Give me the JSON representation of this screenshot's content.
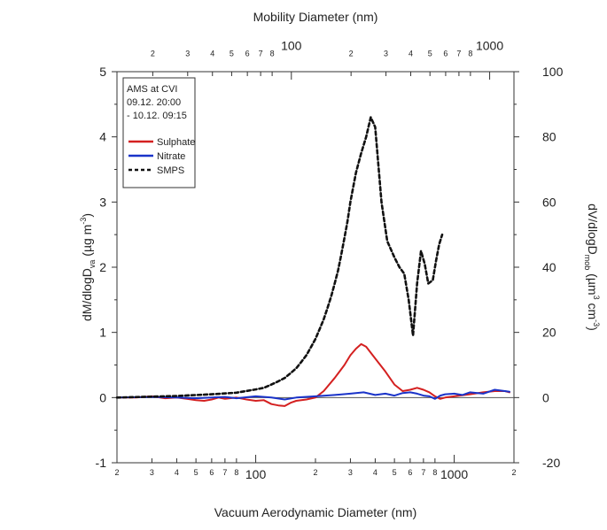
{
  "chart_data": {
    "type": "line",
    "title": "",
    "xlabel": "Vacuum Aerodynamic Diameter (nm)",
    "x_scale": "log",
    "xlim": [
      20,
      2000
    ],
    "x2label": "Mobility Diameter (nm)",
    "x2_scale": "log",
    "x2lim": [
      13.2,
      1326
    ],
    "ylabel": "dM/dlogD_va (µg m^-3)",
    "ylabel_parts": {
      "main": "dM/dlogD",
      "sub": "va",
      "unit_open": " (µg m",
      "unit_sup": "-3",
      "unit_close": ")"
    },
    "ylim": [
      -1,
      5
    ],
    "y_ticks": [
      -1,
      0,
      1,
      2,
      3,
      4,
      5
    ],
    "y2label": "dV/dlogD_mob (µm^3 cm^-3)",
    "y2label_parts": {
      "main": "dV/dlogD",
      "sub": "mob",
      "unit_open": " (µm",
      "unit_sup": "3",
      "unit_mid": " cm",
      "unit_sup2": "-3",
      "unit_close": ")"
    },
    "y2lim": [
      -20,
      100
    ],
    "y2_ticks": [
      -20,
      0,
      20,
      40,
      60,
      80,
      100
    ],
    "x_tick_labels": [
      {
        "v": 20,
        "t": "2"
      },
      {
        "v": 30,
        "t": "3"
      },
      {
        "v": 40,
        "t": "4"
      },
      {
        "v": 50,
        "t": "5"
      },
      {
        "v": 60,
        "t": "6"
      },
      {
        "v": 70,
        "t": "7"
      },
      {
        "v": 80,
        "t": "8"
      },
      {
        "v": 100,
        "t": "100"
      },
      {
        "v": 200,
        "t": "2"
      },
      {
        "v": 300,
        "t": "3"
      },
      {
        "v": 400,
        "t": "4"
      },
      {
        "v": 500,
        "t": "5"
      },
      {
        "v": 600,
        "t": "6"
      },
      {
        "v": 700,
        "t": "7"
      },
      {
        "v": 800,
        "t": "8"
      },
      {
        "v": 1000,
        "t": "1000"
      },
      {
        "v": 2000,
        "t": "2"
      }
    ],
    "x2_tick_labels": [
      {
        "v": 20,
        "t": "2"
      },
      {
        "v": 30,
        "t": "3"
      },
      {
        "v": 40,
        "t": "4"
      },
      {
        "v": 50,
        "t": "5"
      },
      {
        "v": 60,
        "t": "6"
      },
      {
        "v": 70,
        "t": "7"
      },
      {
        "v": 80,
        "t": "8"
      },
      {
        "v": 100,
        "t": "100"
      },
      {
        "v": 200,
        "t": "2"
      },
      {
        "v": 300,
        "t": "3"
      },
      {
        "v": 400,
        "t": "4"
      },
      {
        "v": 500,
        "t": "5"
      },
      {
        "v": 600,
        "t": "6"
      },
      {
        "v": 700,
        "t": "7"
      },
      {
        "v": 800,
        "t": "8"
      },
      {
        "v": 1000,
        "t": "1000"
      }
    ],
    "grid": false,
    "zero_line": true,
    "legend_position": "top-left",
    "annotation_lines": [
      "AMS at CVI",
      "09.12. 20:00",
      "- 10.12. 09:15"
    ],
    "series": [
      {
        "name": "Sulphate",
        "color": "#d42020",
        "dash": "solid",
        "axis": "left",
        "x": [
          20,
          25,
          30,
          35,
          40,
          45,
          50,
          55,
          60,
          65,
          70,
          80,
          90,
          100,
          110,
          120,
          130,
          140,
          150,
          160,
          180,
          200,
          220,
          250,
          280,
          300,
          320,
          340,
          360,
          400,
          450,
          500,
          550,
          600,
          650,
          700,
          750,
          800,
          850,
          900,
          1000,
          1200,
          1400,
          1600,
          1800,
          1900
        ],
        "y": [
          0,
          0,
          0.02,
          -0.01,
          0,
          -0.02,
          -0.04,
          -0.05,
          -0.03,
          0,
          -0.02,
          0,
          -0.03,
          -0.05,
          -0.04,
          -0.1,
          -0.12,
          -0.13,
          -0.08,
          -0.05,
          -0.03,
          0,
          0.1,
          0.3,
          0.5,
          0.65,
          0.75,
          0.82,
          0.78,
          0.6,
          0.4,
          0.2,
          0.1,
          0.12,
          0.15,
          0.12,
          0.08,
          0.02,
          -0.02,
          0.0,
          0.02,
          0.05,
          0.08,
          0.1,
          0.1,
          0.08
        ]
      },
      {
        "name": "Nitrate",
        "color": "#1a33c9",
        "dash": "solid",
        "axis": "left",
        "x": [
          20,
          30,
          40,
          50,
          60,
          70,
          80,
          100,
          120,
          140,
          160,
          200,
          250,
          300,
          350,
          400,
          450,
          500,
          550,
          600,
          650,
          700,
          750,
          800,
          850,
          900,
          1000,
          1100,
          1200,
          1400,
          1600,
          1800,
          1900
        ],
        "y": [
          0,
          0.01,
          0,
          -0.01,
          0,
          0.01,
          -0.01,
          0.02,
          0,
          -0.03,
          0,
          0.02,
          0.04,
          0.06,
          0.08,
          0.04,
          0.06,
          0.03,
          0.07,
          0.08,
          0.06,
          0.03,
          0.02,
          -0.02,
          0.03,
          0.05,
          0.06,
          0.04,
          0.08,
          0.06,
          0.12,
          0.1,
          0.09
        ]
      },
      {
        "name": "SMPS",
        "color": "#111111",
        "dash": "dotted",
        "axis": "right",
        "x": [
          20,
          40,
          60,
          80,
          100,
          110,
          120,
          130,
          140,
          150,
          160,
          170,
          180,
          190,
          200,
          210,
          220,
          230,
          240,
          250,
          260,
          270,
          280,
          290,
          300,
          320,
          340,
          360,
          380,
          400,
          430,
          460,
          500,
          530,
          560,
          590,
          620,
          650,
          680,
          710,
          740,
          780,
          810,
          840,
          870
        ],
        "y": [
          0,
          0.5,
          1.0,
          1.5,
          2.5,
          3.0,
          4.0,
          5.0,
          6.0,
          7.5,
          9.0,
          11.0,
          13.0,
          15.5,
          18.0,
          21.0,
          24.0,
          27.5,
          31.0,
          35.0,
          39.0,
          44.0,
          49.0,
          54.0,
          60.0,
          69.0,
          75.0,
          80.0,
          86.0,
          83.0,
          60.0,
          48.0,
          43.0,
          40.0,
          38.0,
          30.0,
          19.0,
          35.0,
          45.0,
          41.0,
          35.0,
          36.0,
          42.0,
          47.0,
          50.0
        ]
      }
    ]
  }
}
